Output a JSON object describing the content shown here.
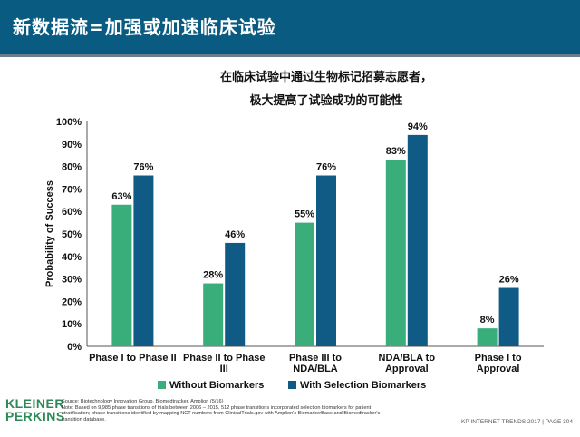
{
  "header": {
    "title": "新数据流=加强或加速临床试验"
  },
  "subtitle": {
    "line1": "在临床试验中通过生物标记招募志愿者，",
    "line2": "极大提高了试验成功的可能性"
  },
  "chart_data": {
    "type": "bar",
    "ylabel": "Probability of Success",
    "ylim": [
      0,
      100
    ],
    "yticks": [
      "0%",
      "10%",
      "20%",
      "30%",
      "40%",
      "50%",
      "60%",
      "70%",
      "80%",
      "90%",
      "100%"
    ],
    "categories": [
      [
        "Phase I to Phase II"
      ],
      [
        "Phase II to Phase",
        "III"
      ],
      [
        "Phase III to",
        "NDA/BLA"
      ],
      [
        "NDA/BLA to",
        "Approval"
      ],
      [
        "Phase I to",
        "Approval"
      ]
    ],
    "series": [
      {
        "name": "Without Biomarkers",
        "color": "#3aae7a",
        "values": [
          63,
          28,
          55,
          83,
          8
        ],
        "labels": [
          "63%",
          "28%",
          "55%",
          "83%",
          "8%"
        ]
      },
      {
        "name": "With Selection Biomarkers",
        "color": "#0f5b86",
        "values": [
          76,
          46,
          76,
          94,
          26
        ],
        "labels": [
          "76%",
          "46%",
          "76%",
          "94%",
          "26%"
        ]
      }
    ],
    "legend": "bottom"
  },
  "footnote": {
    "line1": "Source: Biotechnology Innovation Group, Biomedtracker, Amplion (5/16)",
    "line2": "Note: Based on 9,985 phase transitions of trials between 2006 – 2015. 512 phase transitions incorporated selection biomarkers for patient",
    "line3": "stratification; phase transitions identified by mapping NCT numbers from ClinicalTrials.gov with Amplion's BiomarkerBase and Biomedtracker's",
    "line4": "transition database."
  },
  "logo": {
    "line1": "KLEINER",
    "line2": "PERKINS",
    "color": "#2b8a57"
  },
  "footer": {
    "text": "KP INTERNET TRENDS 2017  |  PAGE 304"
  }
}
